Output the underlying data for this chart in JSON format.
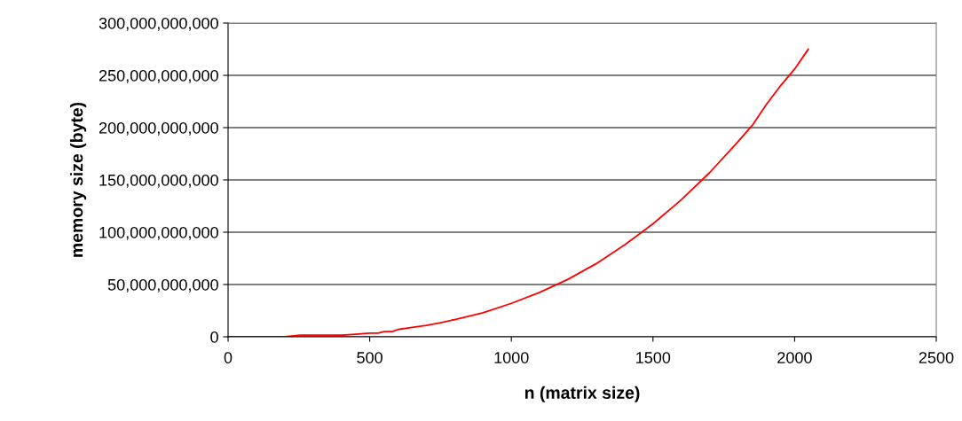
{
  "chart_data": {
    "type": "line",
    "xlabel": "n (matrix size)",
    "ylabel": "memory size (byte)",
    "x": [
      0,
      200,
      256,
      300,
      400,
      450,
      500,
      530,
      550,
      580,
      600,
      650,
      700,
      750,
      800,
      900,
      1000,
      1100,
      1200,
      1300,
      1400,
      1500,
      1600,
      1700,
      1800,
      1850,
      1900,
      1950,
      2000,
      2048
    ],
    "series": [
      {
        "color": "#ff0000",
        "values": [
          0,
          0,
          1500000000,
          1500000000,
          1500000000,
          2500000000,
          3500000000,
          3500000000,
          5000000000,
          5000000000,
          7000000000,
          9000000000,
          11000000000,
          13500000000,
          16500000000,
          23000000000,
          32000000000,
          42500000000,
          55000000000,
          70000000000,
          88000000000,
          108000000000,
          131000000000,
          157000000000,
          186500000000,
          202000000000,
          222000000000,
          240000000000,
          256000000000,
          274900000000
        ]
      }
    ],
    "xlim": [
      0,
      2500
    ],
    "xticks": [
      0,
      500,
      1000,
      1500,
      2000,
      2500
    ],
    "ylim": [
      0,
      300000000000
    ],
    "yticks": [
      {
        "value": 0,
        "label": "0"
      },
      {
        "value": 50000000000,
        "label": "50,000,000,000"
      },
      {
        "value": 100000000000,
        "label": "100,000,000,000"
      },
      {
        "value": 150000000000,
        "label": "150,000,000,000"
      },
      {
        "value": 200000000000,
        "label": "200,000,000,000"
      },
      {
        "value": 250000000000,
        "label": "250,000,000,000"
      },
      {
        "value": 300000000000,
        "label": "300,000,000,000"
      }
    ],
    "grid": "y",
    "marker": "none",
    "line_style": "solid"
  }
}
